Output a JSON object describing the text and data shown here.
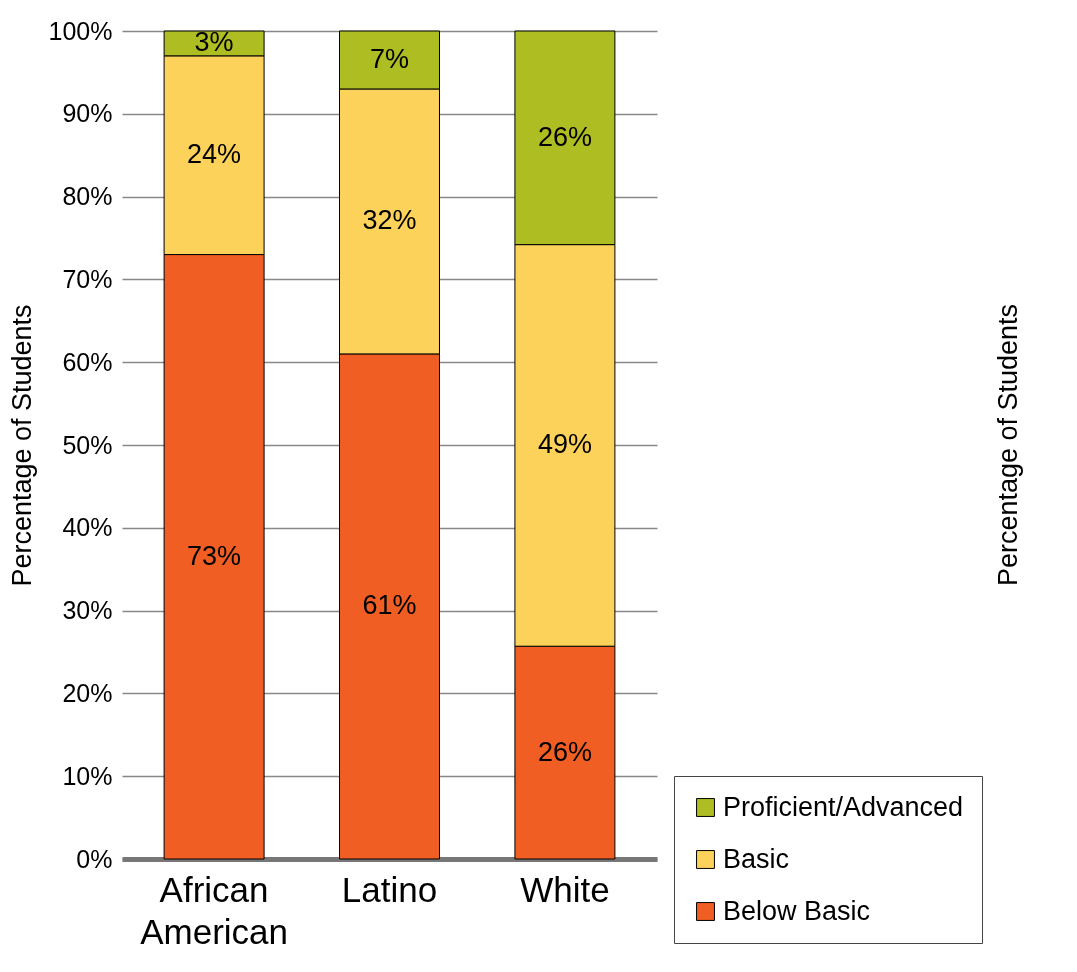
{
  "chart_data": {
    "type": "bar",
    "stacked": true,
    "ylabel": "Percentage of Students",
    "annotations": [
      "Percentage of Students"
    ],
    "categories": [
      "African American",
      "Latino",
      "White"
    ],
    "series": [
      {
        "name": "Below Basic",
        "color": "#f05e23",
        "values": [
          73,
          61,
          25.7
        ],
        "value_labels": [
          "73%",
          "61%",
          "26%"
        ]
      },
      {
        "name": "Basic",
        "color": "#fdd25a",
        "values": [
          24,
          32,
          48.5
        ],
        "value_labels": [
          "24%",
          "32%",
          "49%"
        ]
      },
      {
        "name": "Proficient/Advanced",
        "color": "#aebd22",
        "values": [
          3,
          7,
          25.8
        ],
        "value_labels": [
          "3%",
          "7%",
          "26%"
        ]
      }
    ],
    "ylim": [
      0,
      100
    ],
    "yticks": [
      {
        "value": 0,
        "label": "0%"
      },
      {
        "value": 10,
        "label": "10%"
      },
      {
        "value": 20,
        "label": "20%"
      },
      {
        "value": 30,
        "label": "30%"
      },
      {
        "value": 40,
        "label": "40%"
      },
      {
        "value": 50,
        "label": "50%"
      },
      {
        "value": 60,
        "label": "60%"
      },
      {
        "value": 70,
        "label": "70%"
      },
      {
        "value": 80,
        "label": "80%"
      },
      {
        "value": 90,
        "label": "90%"
      },
      {
        "value": 100,
        "label": "100%"
      }
    ],
    "grid": "y",
    "legend": "bottom right"
  }
}
